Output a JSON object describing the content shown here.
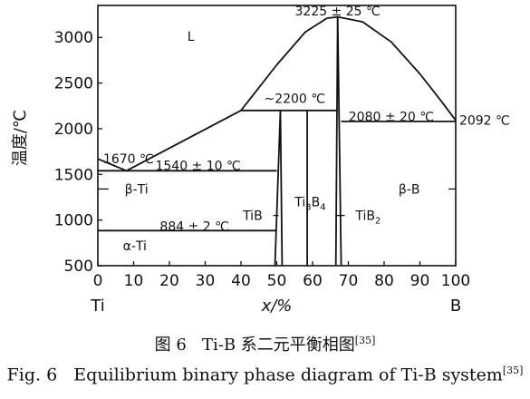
{
  "chart_data": {
    "type": "line",
    "title": "",
    "xlabel": "x/%",
    "ylabel": "温度/℃",
    "xlim": [
      0,
      100
    ],
    "ylim": [
      500,
      3350
    ],
    "grid": false,
    "legend": "none",
    "x_ticks": [
      0,
      10,
      20,
      30,
      40,
      50,
      60,
      70,
      80,
      90,
      100
    ],
    "y_ticks": [
      500,
      1000,
      1500,
      2000,
      2500,
      3000
    ],
    "x_end_labels": {
      "left": "Ti",
      "right": "B"
    },
    "series": [
      {
        "values": [
          [
            0,
            1670
          ],
          [
            8,
            1540
          ],
          [
            40,
            2200
          ]
        ]
      },
      {
        "values": [
          [
            40,
            2200
          ],
          [
            50,
            2700
          ],
          [
            58,
            3060
          ],
          [
            64,
            3210
          ],
          [
            67,
            3225
          ],
          [
            74,
            3170
          ],
          [
            82,
            2950
          ],
          [
            90,
            2600
          ],
          [
            96,
            2300
          ],
          [
            100,
            2092
          ]
        ]
      },
      {
        "values": [
          [
            0,
            1540
          ],
          [
            50,
            1540
          ]
        ]
      },
      {
        "values": [
          [
            0,
            884
          ],
          [
            50,
            884
          ]
        ]
      },
      {
        "values": [
          [
            40,
            2200
          ],
          [
            67,
            2200
          ]
        ]
      },
      {
        "values": [
          [
            68,
            2080
          ],
          [
            100,
            2080
          ]
        ]
      },
      {
        "values": [
          [
            49.5,
            500
          ],
          [
            51,
            2200
          ]
        ]
      },
      {
        "values": [
          [
            51,
            2200
          ],
          [
            51.5,
            500
          ]
        ]
      },
      {
        "values": [
          [
            58.5,
            500
          ],
          [
            58.5,
            2200
          ]
        ]
      },
      {
        "values": [
          [
            66.5,
            500
          ],
          [
            67,
            3225
          ]
        ]
      },
      {
        "values": [
          [
            67,
            3225
          ],
          [
            68,
            500
          ]
        ]
      }
    ],
    "annotations": [
      {
        "text": "L",
        "x": 26,
        "y": 3010
      },
      {
        "text": "3225 ± 25 ℃",
        "x": 67,
        "y": 3290
      },
      {
        "text": "~2200 ℃",
        "x": 55,
        "y": 2330
      },
      {
        "text": "2080 ± 20 ℃",
        "x": 82,
        "y": 2135
      },
      {
        "text": "2092 ℃",
        "x": 101,
        "y": 2092
      },
      {
        "text": "1670 ℃",
        "x": 1.5,
        "y": 1670
      },
      {
        "text": "1540 ± 10 ℃",
        "x": 28,
        "y": 1595
      },
      {
        "text": "β-Ti",
        "x": 7.5,
        "y": 1340
      },
      {
        "text": "Ti3B4",
        "x": 55,
        "y": 1200
      },
      {
        "text": "TiB",
        "x": 46,
        "y": 1050
      },
      {
        "text": "TiB2",
        "x": 72,
        "y": 1050
      },
      {
        "text": "β-B",
        "x": 91,
        "y": 1340
      },
      {
        "text": "884 ± 2 ℃",
        "x": 27,
        "y": 930
      },
      {
        "text": "α-Ti",
        "x": 7,
        "y": 720
      }
    ]
  },
  "caption": {
    "zh_label": "图 6",
    "zh_text": "Ti-B 系二元平衡相图",
    "zh_ref": "[35]",
    "en_label": "Fig. 6",
    "en_text": "Equilibrium binary phase diagram of Ti-B system",
    "en_ref": "[35]"
  }
}
